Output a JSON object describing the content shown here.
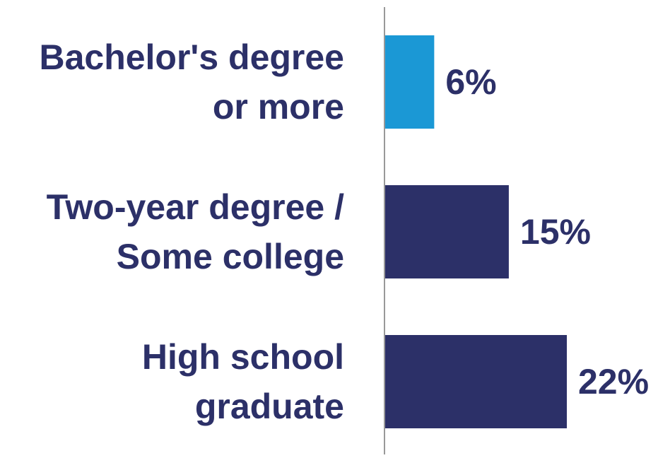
{
  "chart_data": {
    "type": "bar",
    "orientation": "horizontal",
    "categories": [
      [
        "Bachelor's degree",
        "or more"
      ],
      [
        "Two-year degree /",
        "Some college"
      ],
      [
        "High school",
        "graduate"
      ]
    ],
    "values": [
      6,
      15,
      22
    ],
    "value_labels": [
      "6%",
      "15%",
      "22%"
    ],
    "bar_colors": [
      "#1b98d5",
      "#2c3068",
      "#2c3068"
    ],
    "label_color": "#2c3068",
    "axis_color": "#999999",
    "xlim": [
      0,
      26
    ],
    "grid": false,
    "legend": "none",
    "title": "",
    "xlabel": "",
    "ylabel": ""
  }
}
